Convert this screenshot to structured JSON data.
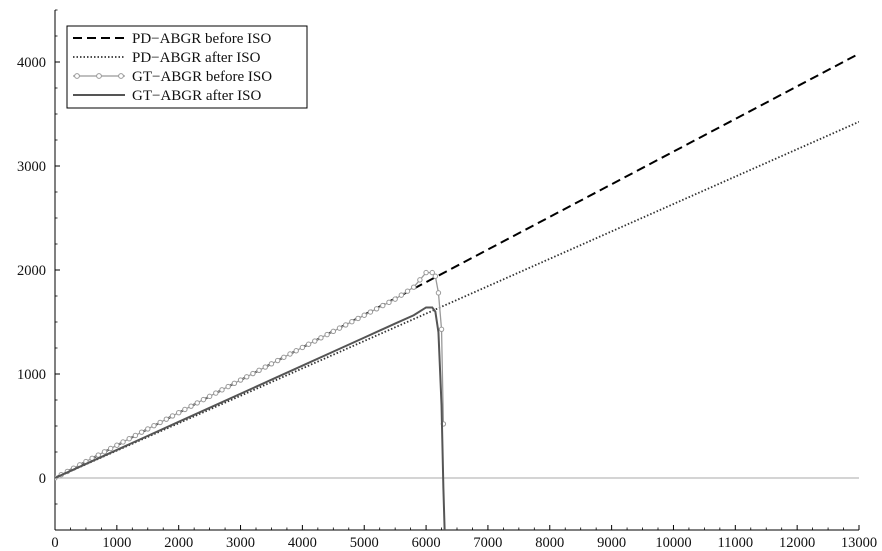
{
  "chart_data": {
    "type": "line",
    "title": "",
    "xlabel": "",
    "ylabel": "",
    "xlim": [
      0,
      13000
    ],
    "ylim": [
      -500,
      4500
    ],
    "x_ticks": [
      0,
      1000,
      2000,
      3000,
      4000,
      5000,
      6000,
      7000,
      8000,
      9000,
      10000,
      11000,
      12000,
      13000
    ],
    "y_ticks": [
      0,
      1000,
      2000,
      3000,
      4000
    ],
    "grid": false,
    "zero_line": true,
    "legend_position": "top-left",
    "series": [
      {
        "name": "PD−ABGR before ISO",
        "style": "dashed",
        "color": "#000000",
        "x": [
          0,
          13000
        ],
        "y": [
          0,
          4080
        ]
      },
      {
        "name": "PD−ABGR after ISO",
        "style": "dotted",
        "color": "#333333",
        "x": [
          0,
          13000
        ],
        "y": [
          0,
          3425
        ]
      },
      {
        "name": "GT−ABGR before ISO",
        "style": "line-with-circles",
        "color": "#999999",
        "x": [
          0,
          500,
          1000,
          1500,
          2000,
          2500,
          3000,
          3500,
          4000,
          4500,
          5000,
          5500,
          5800,
          6000,
          6100,
          6150,
          6200,
          6250,
          6280
        ],
        "y": [
          0,
          158,
          315,
          472,
          628,
          785,
          942,
          1098,
          1255,
          1410,
          1565,
          1720,
          1835,
          1975,
          1975,
          1940,
          1780,
          1430,
          520
        ]
      },
      {
        "name": "GT−ABGR after ISO",
        "style": "solid",
        "color": "#555555",
        "x": [
          0,
          500,
          1000,
          1500,
          2000,
          2500,
          3000,
          3500,
          4000,
          4500,
          5000,
          5500,
          5800,
          6000,
          6100,
          6150,
          6200,
          6250,
          6280,
          6300
        ],
        "y": [
          0,
          135,
          270,
          405,
          540,
          675,
          810,
          945,
          1080,
          1215,
          1350,
          1485,
          1565,
          1640,
          1640,
          1600,
          1400,
          700,
          -100,
          -500
        ]
      }
    ]
  }
}
